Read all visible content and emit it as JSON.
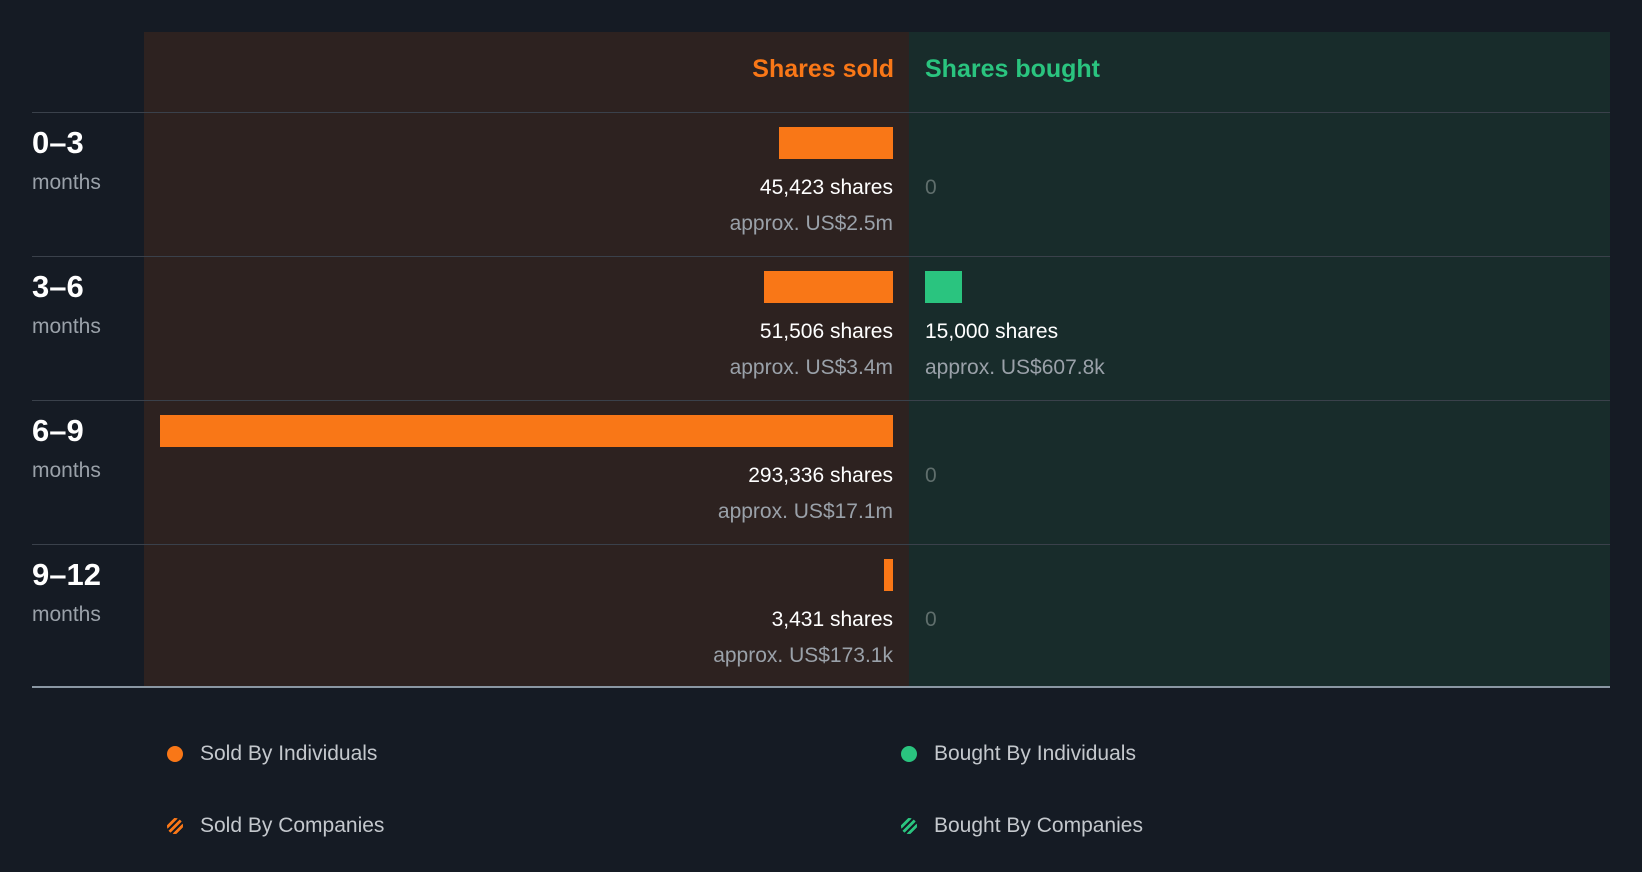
{
  "colors": {
    "sold": "#f97717",
    "bought": "#2ac47f",
    "background": "#151b24"
  },
  "chart_data": {
    "type": "bar",
    "headers": {
      "sold": "Shares sold",
      "bought": "Shares bought"
    },
    "categories": [
      "0–3",
      "3–6",
      "6–9",
      "9–12"
    ],
    "unit_label": "months",
    "rows": [
      {
        "period": "0–3",
        "unit": "months",
        "sold_value": 45423,
        "sold_shares": "45,423 shares",
        "sold_approx": "approx. US$2.5m",
        "bought_value": 0,
        "bought_shares": "0",
        "bought_approx": ""
      },
      {
        "period": "3–6",
        "unit": "months",
        "sold_value": 51506,
        "sold_shares": "51,506 shares",
        "sold_approx": "approx. US$3.4m",
        "bought_value": 15000,
        "bought_shares": "15,000 shares",
        "bought_approx": "approx. US$607.8k"
      },
      {
        "period": "6–9",
        "unit": "months",
        "sold_value": 293336,
        "sold_shares": "293,336 shares",
        "sold_approx": "approx. US$17.1m",
        "bought_value": 0,
        "bought_shares": "0",
        "bought_approx": ""
      },
      {
        "period": "9–12",
        "unit": "months",
        "sold_value": 3431,
        "sold_shares": "3,431 shares",
        "sold_approx": "approx. US$173.1k",
        "bought_value": 0,
        "bought_shares": "0",
        "bought_approx": ""
      }
    ],
    "legend": {
      "sold_individuals": "Sold By Individuals",
      "bought_individuals": "Bought By Individuals",
      "sold_companies": "Sold By Companies",
      "bought_companies": "Bought By Companies"
    }
  }
}
